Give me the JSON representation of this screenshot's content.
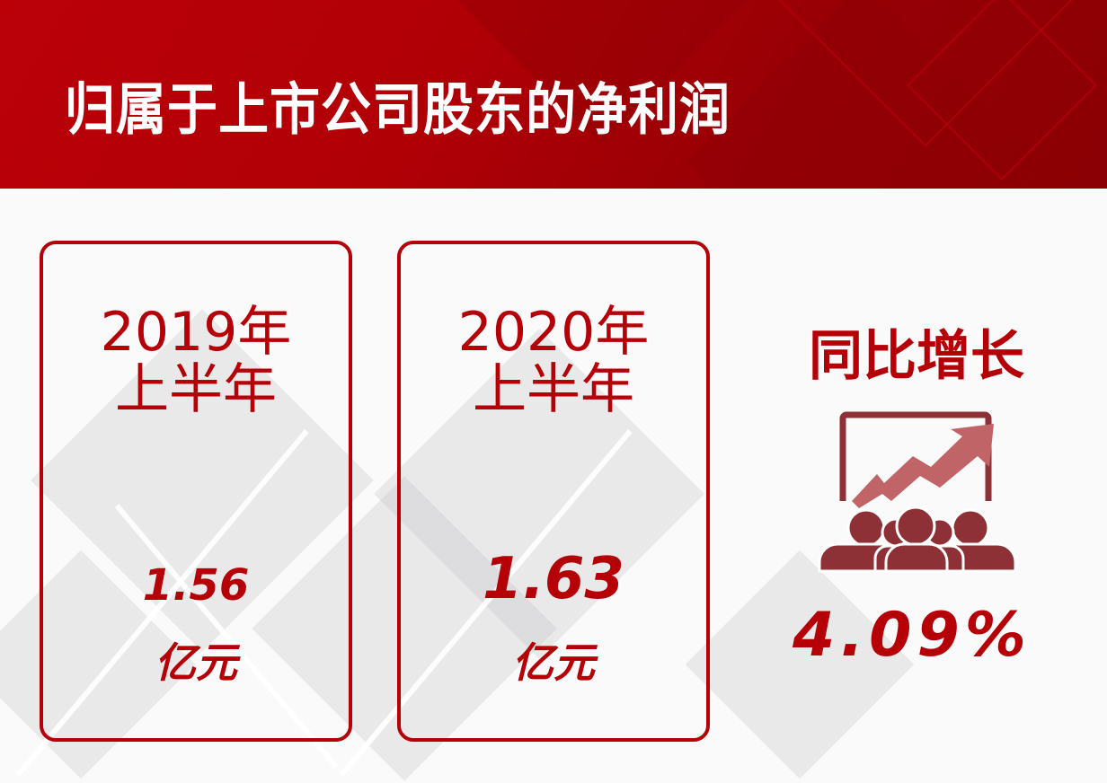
{
  "header": {
    "title": "归属于上市公司股东的净利润"
  },
  "cards": [
    {
      "year": "2019年",
      "period": "上半年",
      "value": "1.56",
      "unit": "亿元"
    },
    {
      "year": "2020年",
      "period": "上半年",
      "value": "1.63",
      "unit": "亿元"
    }
  ],
  "growth": {
    "label": "同比增长",
    "value": "4.09%",
    "icon": "audience-growth-chart-icon"
  },
  "colors": {
    "accent": "#b50008",
    "icon": "#8e3137",
    "arrow": "#c06468"
  }
}
